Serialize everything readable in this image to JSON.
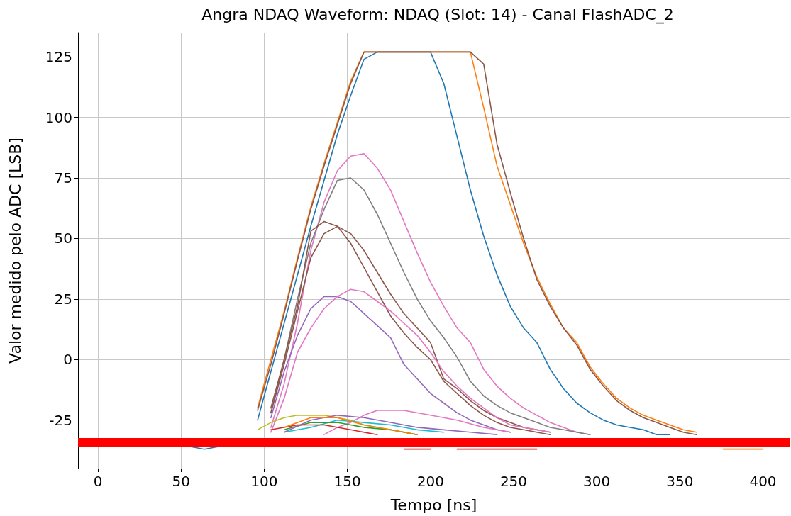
{
  "chart_data": {
    "type": "line",
    "title": "Angra NDAQ Waveform: NDAQ (Slot: 14) - Canal FlashADC_2",
    "xlabel": "Tempo [ns]",
    "ylabel": "Valor medido pelo ADC [LSB]",
    "xlim": [
      -12,
      416
    ],
    "ylim": [
      -45,
      135
    ],
    "xticks": [
      0,
      50,
      100,
      150,
      200,
      250,
      300,
      350,
      400
    ],
    "yticks": [
      -25,
      0,
      25,
      50,
      75,
      100,
      125
    ],
    "grid": true,
    "marker": "none",
    "line_style": "solid",
    "ref_lines": [
      {
        "axis": "y",
        "value": -34,
        "color": "#ff0000"
      }
    ],
    "series": [
      {
        "color": "#1f77b4",
        "x": [
          56,
          64,
          72,
          80,
          96,
          104,
          112,
          120,
          128,
          136,
          144,
          152,
          160,
          168,
          200,
          208,
          216,
          224,
          232,
          240,
          248,
          256,
          264,
          272,
          280,
          288,
          296,
          304,
          312,
          320,
          328,
          336,
          344
        ],
        "values": [
          -36,
          -37,
          -36,
          null,
          -25,
          -5,
          15,
          35,
          55,
          74,
          93,
          109,
          124,
          127,
          127,
          114,
          92,
          70,
          51,
          35,
          22,
          13,
          7,
          -4,
          -12,
          -18,
          -22,
          -25,
          -27,
          -28,
          -29,
          -31,
          -31
        ]
      },
      {
        "color": "#ff7f0e",
        "x": [
          96,
          104,
          112,
          120,
          128,
          136,
          144,
          152,
          160,
          224,
          232,
          240,
          248,
          256,
          264,
          272,
          280,
          288,
          296,
          304,
          312,
          320,
          328,
          336,
          344,
          352,
          360,
          368,
          376,
          384,
          400
        ],
        "values": [
          -20,
          0,
          20,
          42,
          63,
          81,
          98,
          115,
          127,
          127,
          104,
          80,
          64,
          48,
          34,
          23,
          13,
          7,
          -3,
          -10,
          -16,
          -20,
          -23,
          -25,
          -27,
          -29,
          -30,
          null,
          -37,
          -37,
          -37
        ]
      },
      {
        "color": "#8c564b",
        "x": [
          96,
          104,
          112,
          120,
          128,
          136,
          144,
          152,
          160,
          224,
          232,
          240,
          248,
          256,
          264,
          272,
          280,
          288,
          296,
          304,
          312,
          320,
          328,
          336,
          344,
          352,
          360
        ],
        "values": [
          -21,
          -2,
          19,
          41,
          62,
          80,
          97,
          114,
          127,
          127,
          122,
          89,
          69,
          50,
          33,
          22,
          13,
          6,
          -4,
          -11,
          -17,
          -21,
          -24,
          -26,
          -28,
          -30,
          -31
        ]
      },
      {
        "color": "#e377c2",
        "x": [
          104,
          112,
          120,
          128,
          136,
          144,
          152,
          160,
          168,
          176,
          184,
          192,
          200,
          208,
          216,
          224,
          232,
          240,
          248,
          256,
          264,
          272,
          280,
          288,
          296
        ],
        "values": [
          -28,
          -10,
          15,
          45,
          65,
          78,
          84,
          85,
          79,
          70,
          57,
          44,
          32,
          22,
          13,
          7,
          -4,
          -11,
          -16,
          -20,
          -23,
          -26,
          -28,
          -30,
          -31
        ]
      },
      {
        "color": "#7f7f7f",
        "x": [
          104,
          112,
          120,
          128,
          136,
          144,
          152,
          160,
          168,
          176,
          184,
          192,
          200,
          208,
          216,
          224,
          232,
          240,
          248,
          256,
          264,
          272,
          280,
          288,
          296
        ],
        "values": [
          -22,
          0,
          25,
          48,
          62,
          74,
          75,
          70,
          60,
          48,
          36,
          25,
          16,
          9,
          1,
          -9,
          -15,
          -19,
          -22,
          -24,
          -26,
          -28,
          -29,
          -30,
          -31
        ]
      },
      {
        "color": "#8c564b",
        "x": [
          104,
          112,
          120,
          128,
          136,
          144,
          152,
          160,
          168,
          176,
          184,
          192,
          200,
          208,
          216,
          224,
          232,
          240,
          248,
          256,
          272
        ],
        "values": [
          -20,
          0,
          22,
          53,
          57,
          55,
          48,
          38,
          28,
          18,
          11,
          5,
          0,
          -9,
          -14,
          -19,
          -23,
          -26,
          -28,
          -29,
          -31
        ]
      },
      {
        "color": "#8c564b",
        "x": [
          104,
          112,
          120,
          128,
          136,
          144,
          152,
          160,
          168,
          176,
          184,
          192,
          200,
          208,
          216,
          224,
          232,
          240,
          248,
          256,
          272
        ],
        "values": [
          -22,
          -2,
          20,
          42,
          52,
          55,
          52,
          45,
          36,
          27,
          19,
          13,
          7,
          -8,
          -12,
          -17,
          -21,
          -24,
          -26,
          -28,
          -30
        ]
      },
      {
        "color": "#9467bd",
        "x": [
          104,
          112,
          120,
          128,
          136,
          144,
          152,
          160,
          168,
          176,
          184,
          192,
          200,
          208,
          216,
          224,
          232,
          240,
          248
        ],
        "values": [
          -24,
          -5,
          10,
          21,
          26,
          26,
          24,
          19,
          14,
          9,
          -2,
          -8,
          -14,
          -18,
          -22,
          -25,
          -27,
          -29,
          -30
        ]
      },
      {
        "color": "#e377c2",
        "x": [
          104,
          112,
          120,
          128,
          136,
          144,
          152,
          160,
          168,
          176,
          184,
          192,
          200,
          208,
          216,
          224,
          232,
          240,
          248,
          256,
          272
        ],
        "values": [
          -30,
          -16,
          3,
          13,
          21,
          26,
          29,
          28,
          24,
          20,
          15,
          10,
          3,
          -5,
          -11,
          -16,
          -20,
          -24,
          -27,
          -28,
          -30
        ]
      },
      {
        "color": "#e377c2",
        "x": [
          136,
          144,
          152,
          160,
          168,
          184,
          200,
          216,
          232,
          248
        ],
        "values": [
          -31,
          -28,
          -26,
          -23,
          -21,
          -21,
          -23,
          -25,
          -28,
          -30
        ]
      },
      {
        "color": "#bcbd22",
        "x": [
          96,
          104,
          112,
          120,
          136,
          144,
          152,
          160,
          176,
          192
        ],
        "values": [
          -29,
          -26,
          -24,
          -23,
          -23,
          -24,
          -25,
          -27,
          -29,
          -31
        ]
      },
      {
        "color": "#17becf",
        "x": [
          112,
          128,
          144,
          160,
          176,
          192,
          208
        ],
        "values": [
          -30,
          -28,
          -25,
          -26,
          -27,
          -29,
          -30
        ]
      },
      {
        "color": "#2ca02c",
        "x": [
          112,
          128,
          144,
          160,
          176,
          192
        ],
        "values": [
          -29,
          -26,
          -26,
          -28,
          -29,
          -31
        ]
      },
      {
        "color": "#9467bd",
        "x": [
          112,
          128,
          144,
          160,
          176,
          192,
          208,
          224,
          240
        ],
        "values": [
          -30,
          -25,
          -23,
          -24,
          -26,
          -28,
          -29,
          -30,
          -31
        ]
      },
      {
        "color": "#d62728",
        "x": [
          104,
          120,
          136,
          152,
          168,
          176,
          184,
          200,
          208,
          216,
          264
        ],
        "values": [
          -29,
          -27,
          -27,
          -29,
          -31,
          null,
          -37,
          -37,
          null,
          -37,
          -37
        ]
      },
      {
        "color": "#ff7f0e",
        "x": [
          112,
          128,
          144,
          160,
          176,
          192
        ],
        "values": [
          -28,
          -24,
          -24,
          -27,
          -29,
          -31
        ]
      }
    ]
  }
}
